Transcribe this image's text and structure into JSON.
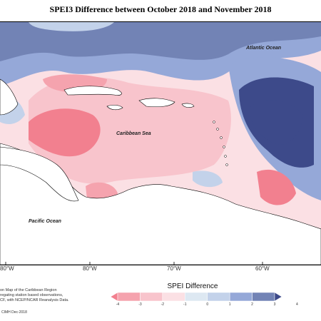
{
  "title": "SPEI3 Difference between October 2018 and November 2018",
  "sea_labels": {
    "atlantic": "Atlantic Ocean",
    "caribbean": "Caribbean Sea",
    "pacific": "Pacific Ocean"
  },
  "longitude_labels": [
    "80°W",
    "80°W",
    "70°W",
    "60°W"
  ],
  "caption_lines": [
    "on Map of the Caribbean Region",
    "regating station based observations,",
    "CF, with NCEP/NCAR Reanalysis Data."
  ],
  "credit": "CIMH Dec-2018",
  "legend": {
    "title": "SPEI Difference",
    "ticks": [
      "-4",
      "-3",
      "-2",
      "-1",
      "0",
      "1",
      "2",
      "3",
      "4"
    ],
    "colors": [
      "#f2808f",
      "#f5a3ae",
      "#f8c4cc",
      "#fbe0e4",
      "#dde8f2",
      "#c3d2ea",
      "#95a8d8",
      "#7283b5",
      "#3d4a8a"
    ]
  },
  "colors": {
    "land": "#ffffff",
    "dry": "#f5a3ae",
    "wet": "#7283b5",
    "very_wet": "#3d4a8a"
  }
}
